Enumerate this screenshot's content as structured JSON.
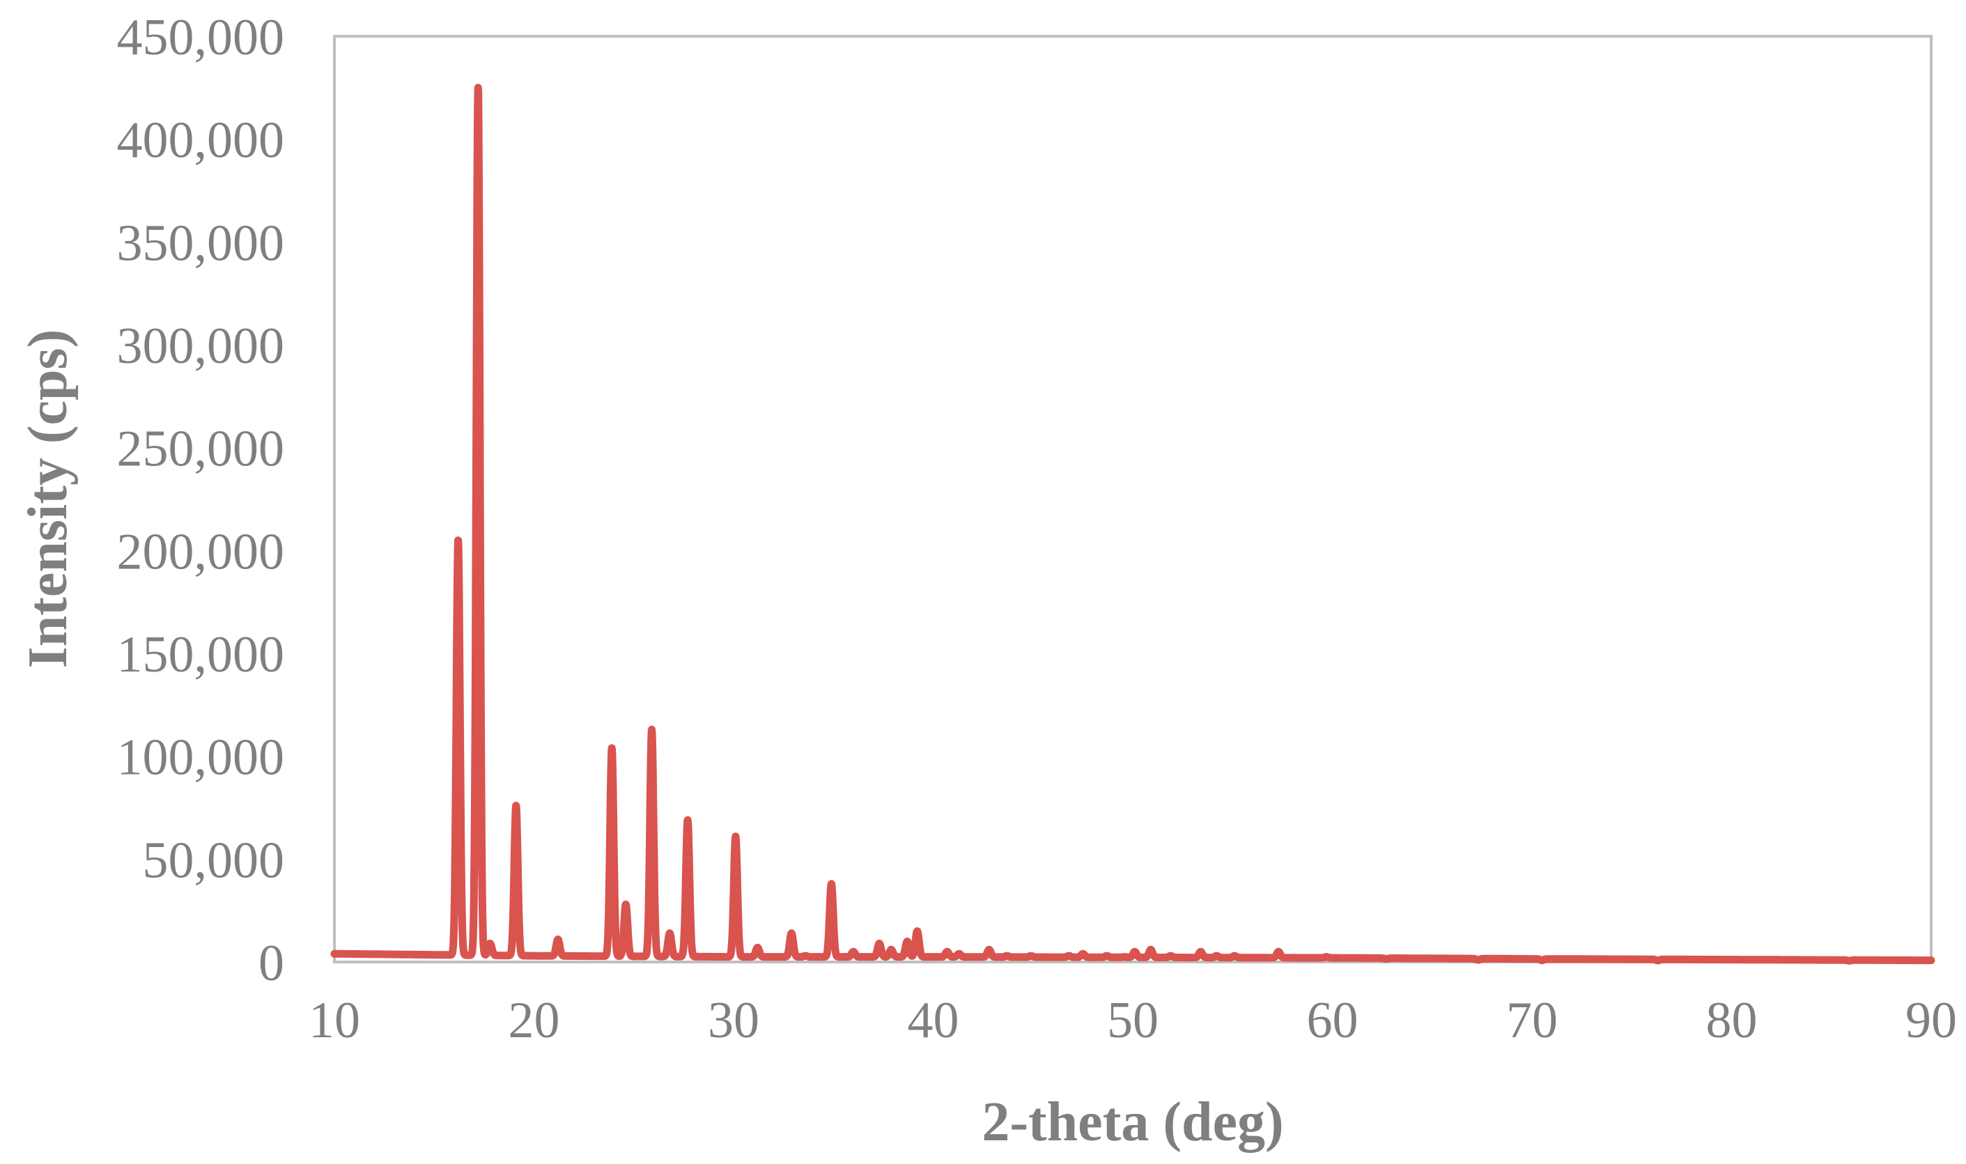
{
  "chart_data": {
    "type": "line",
    "title": "",
    "xlabel": "2-theta (deg)",
    "ylabel": "Intensity (cps)",
    "xlim": [
      10,
      90
    ],
    "ylim": [
      0,
      450000
    ],
    "x_ticks": [
      "10",
      "20",
      "30",
      "40",
      "50",
      "60",
      "70",
      "80",
      "90"
    ],
    "y_ticks": [
      "0",
      "50,000",
      "100,000",
      "150,000",
      "200,000",
      "250,000",
      "300,000",
      "350,000",
      "400,000",
      "450,000"
    ],
    "grid": false,
    "legend": "none",
    "series": [
      {
        "color": "#d9534f",
        "baseline": [
          [
            10,
            4000
          ],
          [
            15,
            3500
          ],
          [
            20,
            3000
          ],
          [
            30,
            2500
          ],
          [
            40,
            2500
          ],
          [
            60,
            2000
          ],
          [
            70,
            1500
          ],
          [
            90,
            800
          ]
        ],
        "peaks": [
          [
            16.2,
            205000
          ],
          [
            17.2,
            425000
          ],
          [
            17.8,
            9000
          ],
          [
            19.1,
            76000
          ],
          [
            21.2,
            11000
          ],
          [
            23.9,
            104000
          ],
          [
            24.6,
            28000
          ],
          [
            25.9,
            113000
          ],
          [
            26.8,
            14000
          ],
          [
            27.7,
            69000
          ],
          [
            30.1,
            61000
          ],
          [
            31.2,
            7000
          ],
          [
            32.9,
            14000
          ],
          [
            33.6,
            3000
          ],
          [
            34.9,
            38000
          ],
          [
            36.0,
            5000
          ],
          [
            37.3,
            9000
          ],
          [
            37.9,
            6000
          ],
          [
            38.7,
            10000
          ],
          [
            39.2,
            15000
          ],
          [
            40.7,
            5000
          ],
          [
            41.3,
            4000
          ],
          [
            42.8,
            6000
          ],
          [
            43.7,
            3000
          ],
          [
            44.9,
            3000
          ],
          [
            46.8,
            3000
          ],
          [
            47.5,
            4000
          ],
          [
            48.7,
            3000
          ],
          [
            49.6,
            2500
          ],
          [
            50.1,
            5000
          ],
          [
            50.9,
            6000
          ],
          [
            51.9,
            3000
          ],
          [
            53.4,
            5000
          ],
          [
            54.2,
            3000
          ],
          [
            55.1,
            3000
          ],
          [
            57.3,
            5000
          ],
          [
            59.7,
            2500
          ],
          [
            62.7,
            1500
          ],
          [
            67.3,
            1000
          ],
          [
            70.5,
            800
          ],
          [
            76.3,
            700
          ],
          [
            85.9,
            600
          ]
        ]
      }
    ]
  }
}
